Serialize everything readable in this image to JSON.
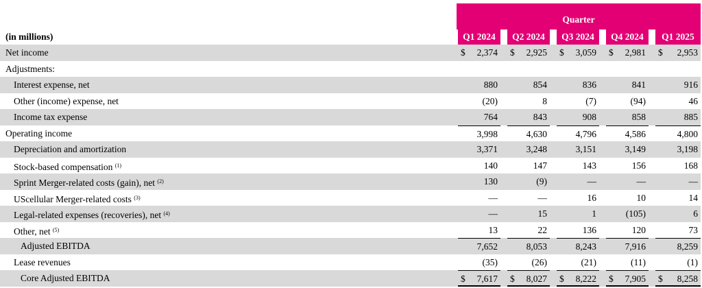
{
  "header": {
    "units_label": "(in millions)",
    "group_label": "Quarter",
    "quarters": [
      "Q1 2024",
      "Q2 2024",
      "Q3 2024",
      "Q4 2024",
      "Q1 2025"
    ]
  },
  "currency_symbol": "$",
  "rows": [
    {
      "label": "Net income",
      "note": "",
      "indent": 0,
      "values": [
        "2,374",
        "2,925",
        "3,059",
        "2,981",
        "2,953"
      ],
      "dollar": true
    },
    {
      "label": "Adjustments:",
      "note": "",
      "indent": 0,
      "values": [
        "",
        "",
        "",
        "",
        ""
      ],
      "dollar": false
    },
    {
      "label": "Interest expense, net",
      "note": "",
      "indent": 1,
      "values": [
        "880",
        "854",
        "836",
        "841",
        "916"
      ],
      "dollar": false
    },
    {
      "label": "Other (income) expense, net",
      "note": "",
      "indent": 1,
      "values": [
        "(20)",
        "8",
        "(7)",
        "(94)",
        "46"
      ],
      "dollar": false
    },
    {
      "label": "Income tax expense",
      "note": "",
      "indent": 1,
      "values": [
        "764",
        "843",
        "908",
        "858",
        "885"
      ],
      "dollar": false
    },
    {
      "label": "Operating income",
      "note": "",
      "indent": 0,
      "values": [
        "3,998",
        "4,630",
        "4,796",
        "4,586",
        "4,800"
      ],
      "dollar": false,
      "rule_top": true
    },
    {
      "label": "Depreciation and amortization",
      "note": "",
      "indent": 1,
      "values": [
        "3,371",
        "3,248",
        "3,151",
        "3,149",
        "3,198"
      ],
      "dollar": false
    },
    {
      "label": "Stock-based compensation",
      "note": "(1)",
      "indent": 1,
      "values": [
        "140",
        "147",
        "143",
        "156",
        "168"
      ],
      "dollar": false
    },
    {
      "label": "Sprint Merger-related costs (gain), net",
      "note": "(2)",
      "indent": 1,
      "values": [
        "130",
        "(9)",
        "—",
        "—",
        "—"
      ],
      "dollar": false
    },
    {
      "label": "UScellular Merger-related costs",
      "note": "(3)",
      "indent": 1,
      "values": [
        "—",
        "—",
        "16",
        "10",
        "14"
      ],
      "dollar": false
    },
    {
      "label": "Legal-related expenses (recoveries), net",
      "note": "(4)",
      "indent": 1,
      "values": [
        "—",
        "15",
        "1",
        "(105)",
        "6"
      ],
      "dollar": false
    },
    {
      "label": "Other, net",
      "note": "(5)",
      "indent": 1,
      "values": [
        "13",
        "22",
        "136",
        "120",
        "73"
      ],
      "dollar": false
    },
    {
      "label": "Adjusted EBITDA",
      "note": "",
      "indent": 2,
      "values": [
        "7,652",
        "8,053",
        "8,243",
        "7,916",
        "8,259"
      ],
      "dollar": false,
      "rule_top": true
    },
    {
      "label": "Lease revenues",
      "note": "",
      "indent": 1,
      "values": [
        "(35)",
        "(26)",
        "(21)",
        "(11)",
        "(1)"
      ],
      "dollar": false
    },
    {
      "label": "Core Adjusted EBITDA",
      "note": "",
      "indent": 2,
      "values": [
        "7,617",
        "8,027",
        "8,222",
        "7,905",
        "8,258"
      ],
      "dollar": true,
      "rule_top": true,
      "rule_bottom": true
    }
  ]
}
